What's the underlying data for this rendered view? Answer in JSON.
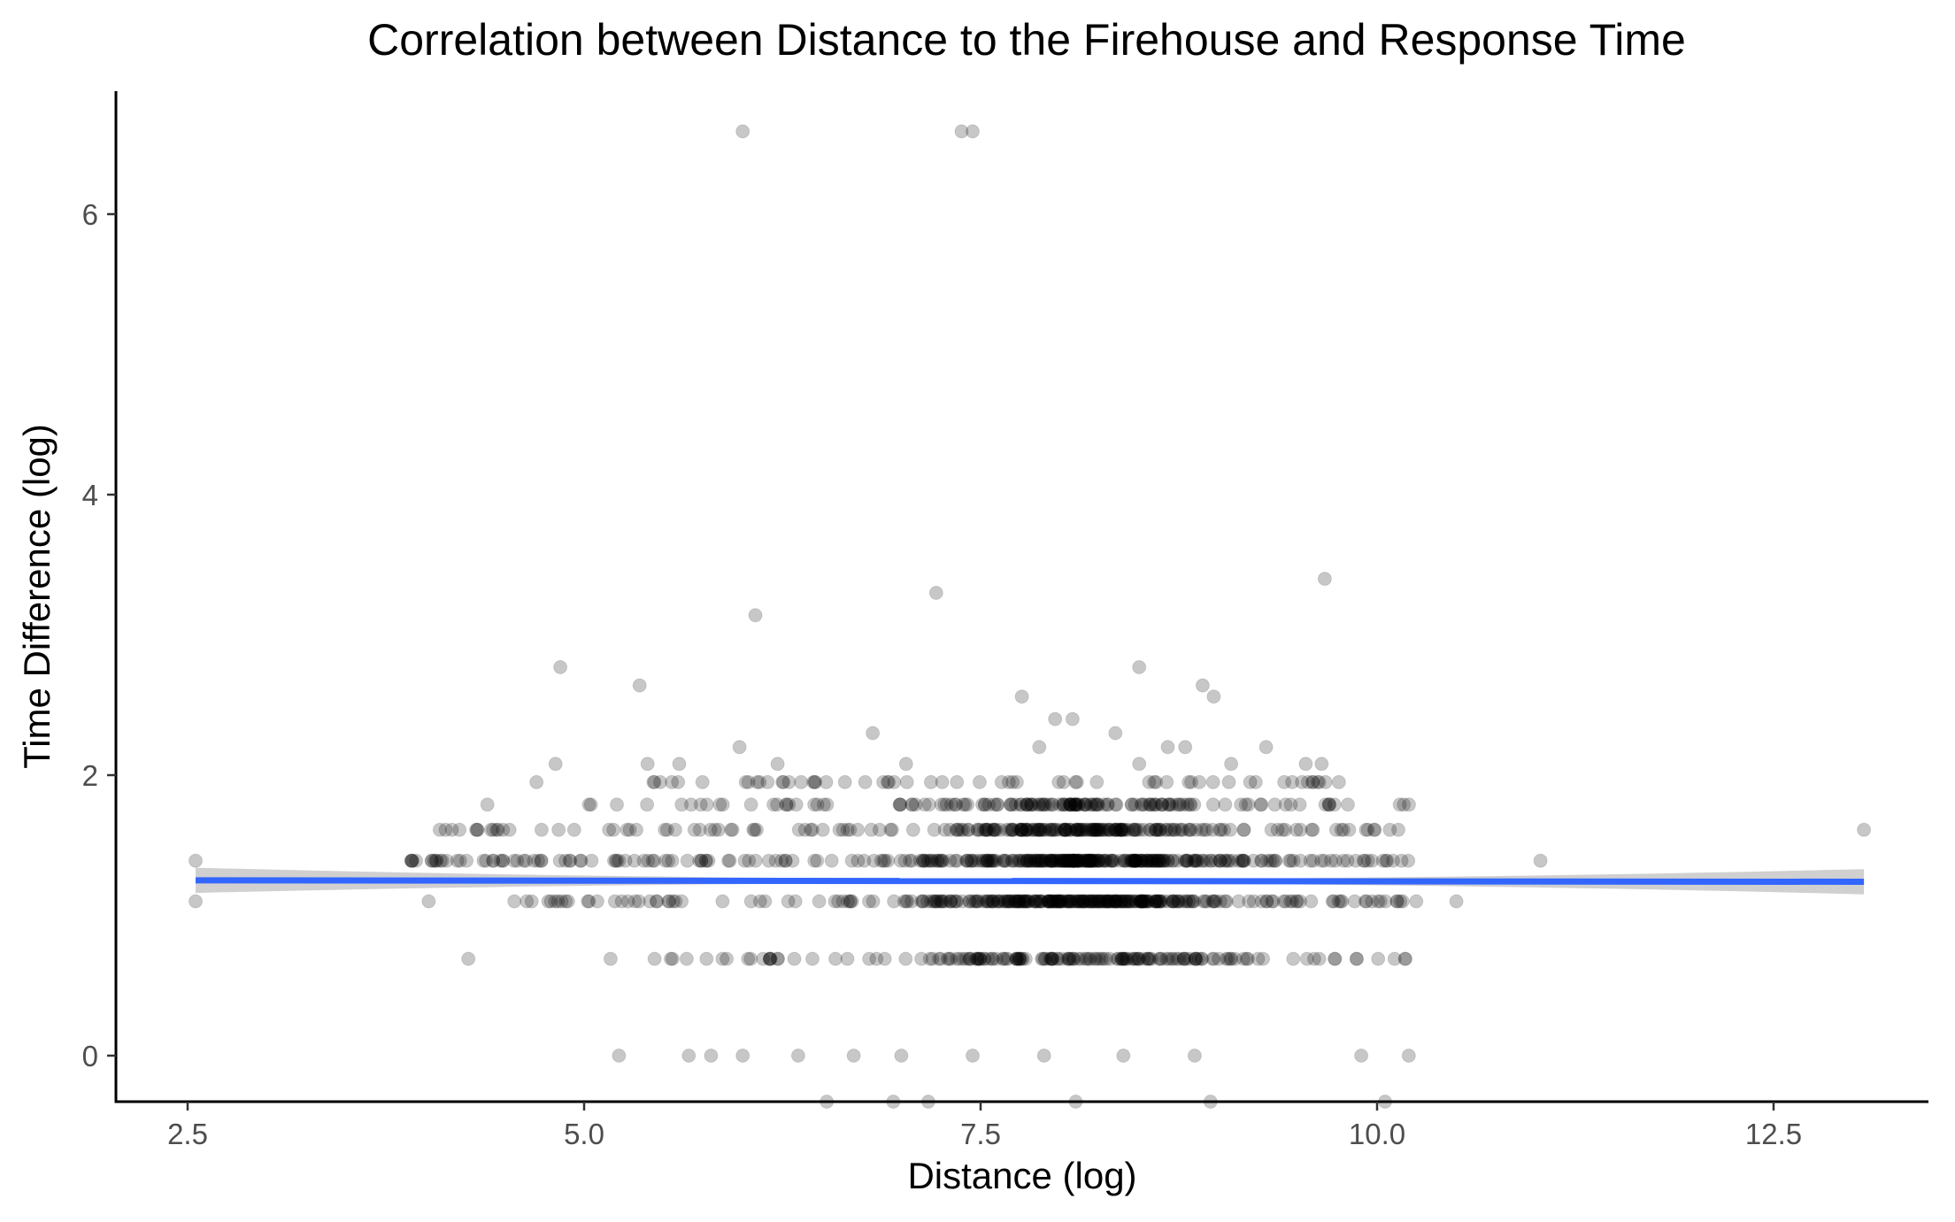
{
  "chart_data": {
    "type": "scatter",
    "title": "Correlation between Distance to the Firehouse and Response Time",
    "xlabel": "Distance (log)",
    "ylabel": "Time Difference (log)",
    "xlim": [
      2.05,
      13.5
    ],
    "ylim": [
      -0.33,
      6.85
    ],
    "x_ticks": [
      2.5,
      5.0,
      7.5,
      10.0,
      12.5
    ],
    "x_tick_labels": [
      "2.5",
      "5.0",
      "7.5",
      "10.0",
      "12.5"
    ],
    "y_ticks": [
      0,
      2,
      4,
      6
    ],
    "y_tick_labels": [
      "0",
      "2",
      "4",
      "6"
    ],
    "grid": false,
    "legend": "none",
    "colors": {
      "points": "#000000",
      "point_alpha": 0.22,
      "smooth_line": "#3366FF",
      "confidence_band": "#c8c8c8"
    },
    "dense_bands": [
      {
        "y": 0.69,
        "x_range": [
          5.0,
          10.2
        ]
      },
      {
        "y": 1.1,
        "x_range": [
          4.55,
          10.25
        ]
      },
      {
        "y": 1.39,
        "x_range": [
          3.9,
          10.25
        ]
      },
      {
        "y": 1.61,
        "x_range": [
          4.1,
          10.2
        ]
      },
      {
        "y": 1.79,
        "x_range": [
          5.0,
          10.25
        ]
      }
    ],
    "outliers": [
      {
        "x": 6.0,
        "y": 6.59
      },
      {
        "x": 7.38,
        "y": 6.59
      },
      {
        "x": 7.45,
        "y": 6.59
      },
      {
        "x": 7.22,
        "y": 3.3
      },
      {
        "x": 9.67,
        "y": 3.4
      },
      {
        "x": 6.08,
        "y": 3.14
      },
      {
        "x": 4.85,
        "y": 2.77
      },
      {
        "x": 5.35,
        "y": 2.64
      },
      {
        "x": 8.5,
        "y": 2.77
      },
      {
        "x": 8.9,
        "y": 2.64
      },
      {
        "x": 8.97,
        "y": 2.56
      },
      {
        "x": 7.76,
        "y": 2.56
      },
      {
        "x": 7.97,
        "y": 2.4
      },
      {
        "x": 8.08,
        "y": 2.4
      },
      {
        "x": 8.35,
        "y": 2.3
      },
      {
        "x": 6.82,
        "y": 2.3
      },
      {
        "x": 5.98,
        "y": 2.2
      },
      {
        "x": 7.87,
        "y": 2.2
      },
      {
        "x": 8.68,
        "y": 2.2
      },
      {
        "x": 8.79,
        "y": 2.2
      },
      {
        "x": 9.3,
        "y": 2.2
      },
      {
        "x": 4.82,
        "y": 2.08
      },
      {
        "x": 5.4,
        "y": 2.08
      },
      {
        "x": 5.6,
        "y": 2.08
      },
      {
        "x": 6.22,
        "y": 2.08
      },
      {
        "x": 7.03,
        "y": 2.08
      },
      {
        "x": 8.5,
        "y": 2.08
      },
      {
        "x": 9.08,
        "y": 2.08
      },
      {
        "x": 9.55,
        "y": 2.08
      },
      {
        "x": 9.65,
        "y": 2.08
      },
      {
        "x": 2.55,
        "y": 1.39
      },
      {
        "x": 2.55,
        "y": 1.1
      },
      {
        "x": 3.91,
        "y": 1.39
      },
      {
        "x": 4.02,
        "y": 1.1
      },
      {
        "x": 4.09,
        "y": 1.61
      },
      {
        "x": 4.27,
        "y": 0.69
      },
      {
        "x": 4.39,
        "y": 1.79
      },
      {
        "x": 4.7,
        "y": 1.95
      },
      {
        "x": 10.5,
        "y": 1.1
      },
      {
        "x": 11.03,
        "y": 1.39
      },
      {
        "x": 13.07,
        "y": 1.61
      },
      {
        "x": 5.22,
        "y": 0.0
      },
      {
        "x": 5.66,
        "y": 0.0
      },
      {
        "x": 5.8,
        "y": 0.0
      },
      {
        "x": 6.0,
        "y": 0.0
      },
      {
        "x": 6.35,
        "y": 0.0
      },
      {
        "x": 6.7,
        "y": 0.0
      },
      {
        "x": 7.0,
        "y": 0.0
      },
      {
        "x": 7.45,
        "y": 0.0
      },
      {
        "x": 7.9,
        "y": 0.0
      },
      {
        "x": 8.4,
        "y": 0.0
      },
      {
        "x": 8.85,
        "y": 0.0
      },
      {
        "x": 9.9,
        "y": 0.0
      },
      {
        "x": 10.2,
        "y": 0.0
      },
      {
        "x": 6.53,
        "y": -0.33
      },
      {
        "x": 6.95,
        "y": -0.33
      },
      {
        "x": 7.17,
        "y": -0.33
      },
      {
        "x": 8.1,
        "y": -0.33
      },
      {
        "x": 8.95,
        "y": -0.33
      },
      {
        "x": 10.05,
        "y": -0.33
      }
    ],
    "smooth_line": {
      "method": "lm",
      "x": [
        2.55,
        13.07
      ],
      "y": [
        1.25,
        1.24
      ],
      "se_band_halfwidth_ends": 0.09,
      "se_band_halfwidth_center": 0.015
    }
  }
}
